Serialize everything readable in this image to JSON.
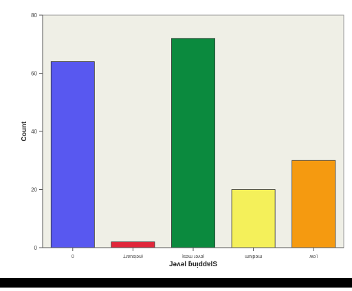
{
  "chart_data": {
    "type": "bar",
    "xlabel": "Jəʌəl ƃuᴉddɐlS",
    "ylabel": "Count",
    "ylim": [
      0,
      80
    ],
    "yticks": [
      0,
      20,
      40,
      60,
      80
    ],
    "ytick_labels": [
      "0",
      "20",
      "40",
      "60",
      "80"
    ],
    "categories": [
      "0",
      "Ʇɹɐnsᴉǝuʇ",
      "ʇsǝɯ ɹǝʌǝl",
      "ɯnᴉpǝɯ",
      "ʍo˥"
    ],
    "values": [
      64,
      2,
      72,
      20,
      30
    ],
    "colors": [
      "#5858f0",
      "#e0263a",
      "#0b8a3e",
      "#f4f05a",
      "#f59a10"
    ],
    "plot_background": "#efefe6",
    "grid": false
  }
}
